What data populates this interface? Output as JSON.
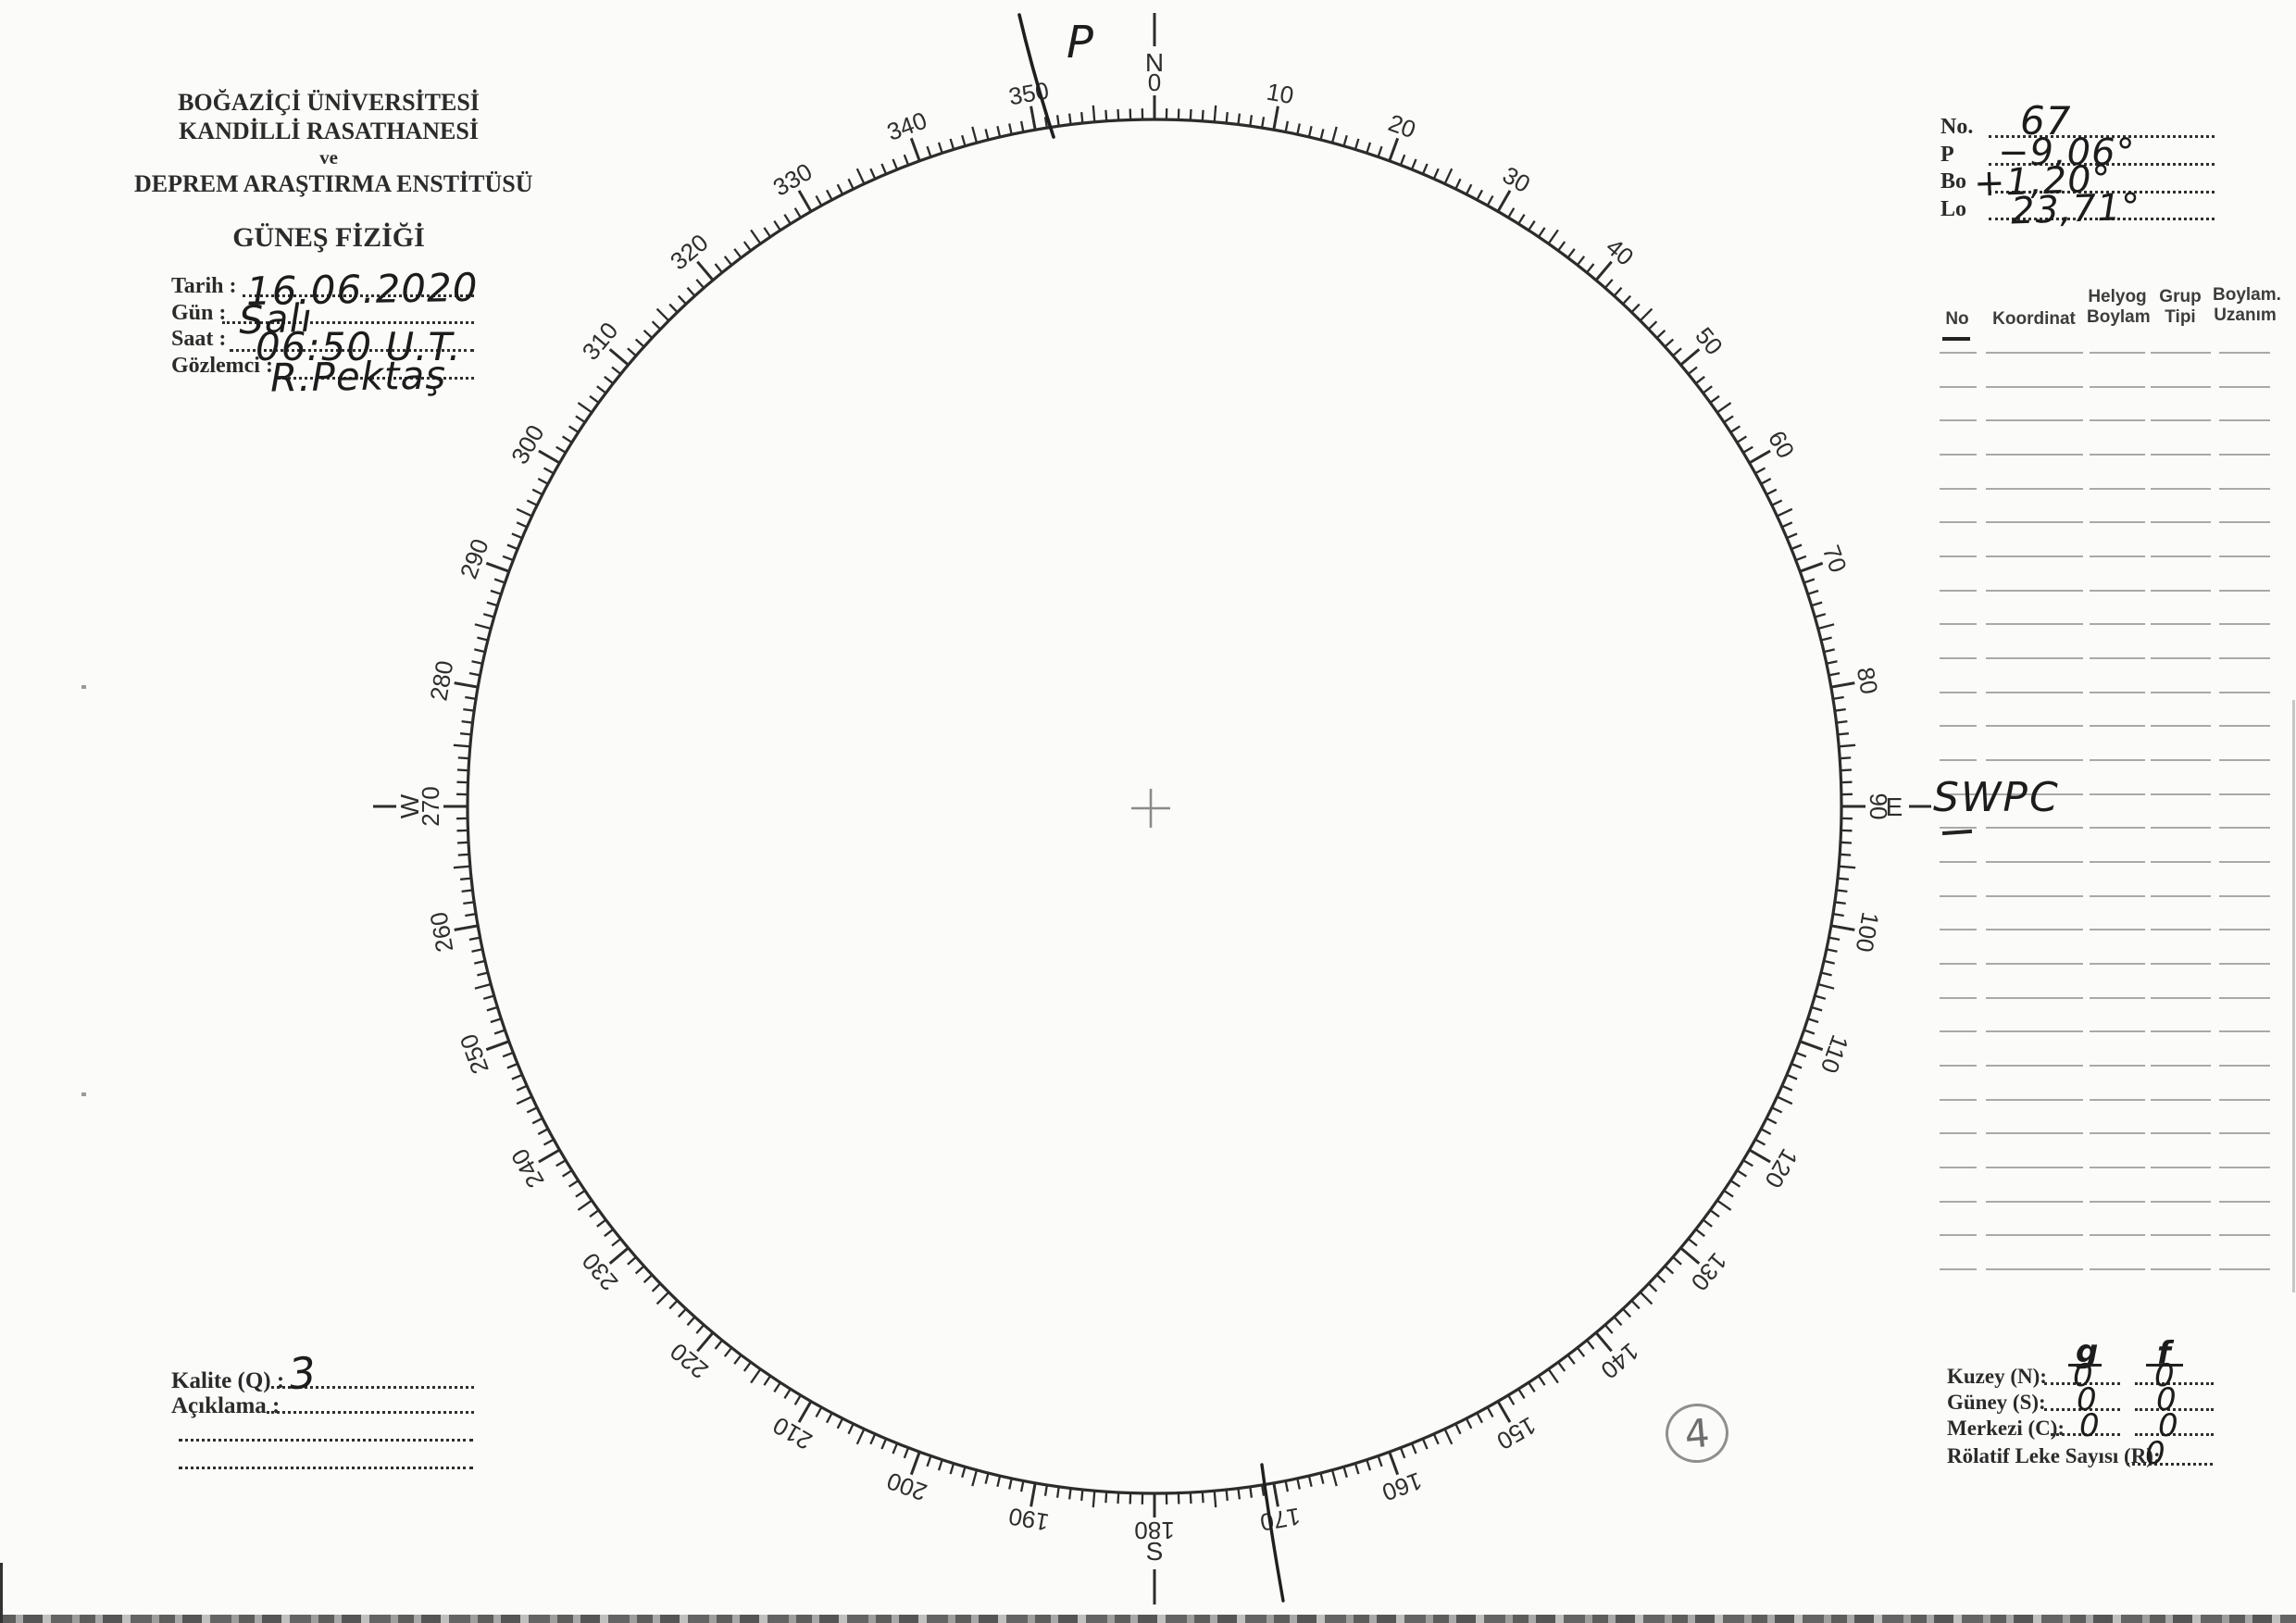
{
  "page": {
    "page_number": "4"
  },
  "header": {
    "line1": "BOĞAZİÇİ ÜNİVERSİTESİ",
    "line2": "KANDİLLİ RASATHANESİ",
    "line3": "ve",
    "line4": "DEPREM ARAŞTIRMA ENSTİTÜSÜ",
    "title": "GÜNEŞ FİZİĞİ"
  },
  "observation": {
    "date_label": "Tarih :",
    "date_value": "16.06.2020",
    "day_label": "Gün :",
    "day_value": "Salı",
    "time_label": "Saat :",
    "time_value": "06:50 U.T.",
    "observer_label": "Gözlemci :",
    "observer_value": "R.Pektaş"
  },
  "ephemeris": {
    "no_label": "No.",
    "no_value": "67",
    "p_label": "P",
    "p_value": "−9,06°",
    "bo_label": "Bo",
    "bo_value": "+1,20°",
    "lo_label": "Lo",
    "lo_value": "23,71°"
  },
  "spot_table": {
    "headers": [
      {
        "line1": "No",
        "line2": ""
      },
      {
        "line1": "Koordinat",
        "line2": ""
      },
      {
        "line1": "Helyog",
        "line2": "Boylam"
      },
      {
        "line1": "Grup",
        "line2": "Tipi"
      },
      {
        "line1": "Boylam.",
        "line2": "Uzanım"
      }
    ],
    "row_count": 28,
    "annotation_swpc": "SWPC"
  },
  "disk": {
    "cardinals": {
      "north": "N",
      "east": "E",
      "south": "S",
      "west": "W"
    },
    "degree_labels": [
      "0",
      "10",
      "20",
      "30",
      "40",
      "50",
      "60",
      "70",
      "80",
      "90",
      "100",
      "110",
      "120",
      "130",
      "140",
      "150",
      "160",
      "170",
      "180",
      "190",
      "200",
      "210",
      "220",
      "230",
      "240",
      "250",
      "260",
      "270",
      "280",
      "290",
      "300",
      "310",
      "320",
      "330",
      "340",
      "350"
    ],
    "p_mark": "P"
  },
  "quality": {
    "quality_label": "Kalite (Q) :",
    "quality_value": "3",
    "notes_label": "Açıklama :"
  },
  "counts": {
    "col_g": "g",
    "col_f": "f",
    "rows": [
      {
        "label": "Kuzey (N):",
        "g": "0",
        "f": "0"
      },
      {
        "label": "Güney (S):",
        "g": "0",
        "f": "0"
      },
      {
        "label": "Merkezi (C):",
        "g": "0",
        "f": "0"
      }
    ],
    "relative_label": "Rölatif Leke Sayısı (R):",
    "relative_value": "0"
  }
}
